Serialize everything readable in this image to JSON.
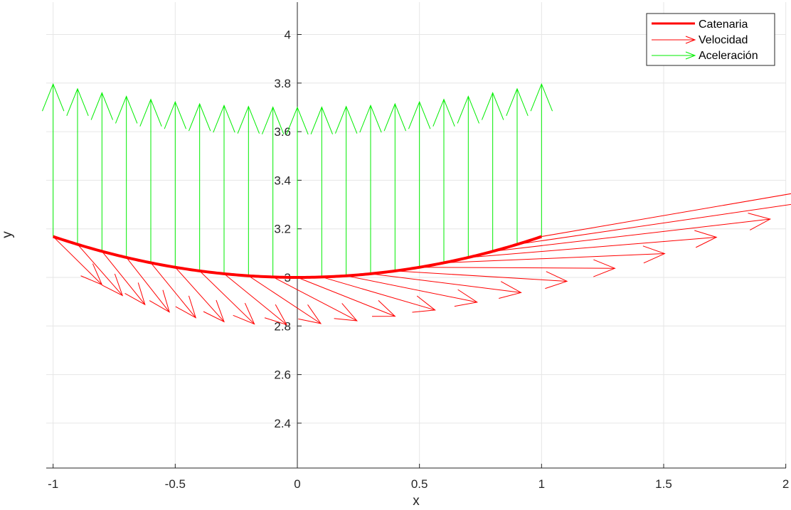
{
  "chart_data": {
    "type": "line",
    "xlabel": "x",
    "ylabel": "y",
    "xlim": [
      -1,
      2
    ],
    "ylim": [
      2.2,
      4.13
    ],
    "xticks": [
      "-1",
      "-0.5",
      "0",
      "0.5",
      "1",
      "1.5",
      "2"
    ],
    "yticks": [
      "2.4",
      "2.6",
      "2.8",
      "3",
      "3.2",
      "3.4",
      "3.6",
      "3.8",
      "4"
    ],
    "grid": true,
    "legend_position": "top-right",
    "series": [
      {
        "name": "Catenaria",
        "kind": "line",
        "color": "#ff0000",
        "function": "y = 3*cosh(x/3), x in [-1, 1]"
      },
      {
        "name": "Velocidad",
        "kind": "quiver",
        "color": "#ff0000",
        "x_start": [
          -1.0,
          -0.9,
          -0.8,
          -0.7,
          -0.6,
          -0.5,
          -0.4,
          -0.3,
          -0.2,
          -0.1,
          0.0,
          0.1,
          0.2,
          0.3,
          0.4,
          0.5,
          0.6,
          0.7,
          0.8,
          0.9,
          1.0
        ]
      },
      {
        "name": "Aceleración",
        "kind": "quiver",
        "color": "#00ee00",
        "x_start": [
          -1.0,
          -0.9,
          -0.8,
          -0.7,
          -0.6,
          -0.5,
          -0.4,
          -0.3,
          -0.2,
          -0.1,
          0.0,
          0.1,
          0.2,
          0.3,
          0.4,
          0.5,
          0.6,
          0.7,
          0.8,
          0.9,
          1.0
        ]
      }
    ]
  },
  "colors": {
    "axis": "#262626",
    "grid": "#e6e6e6",
    "catenary": "#ff0000",
    "velocity": "#ff0000",
    "acceleration": "#00ee00"
  }
}
